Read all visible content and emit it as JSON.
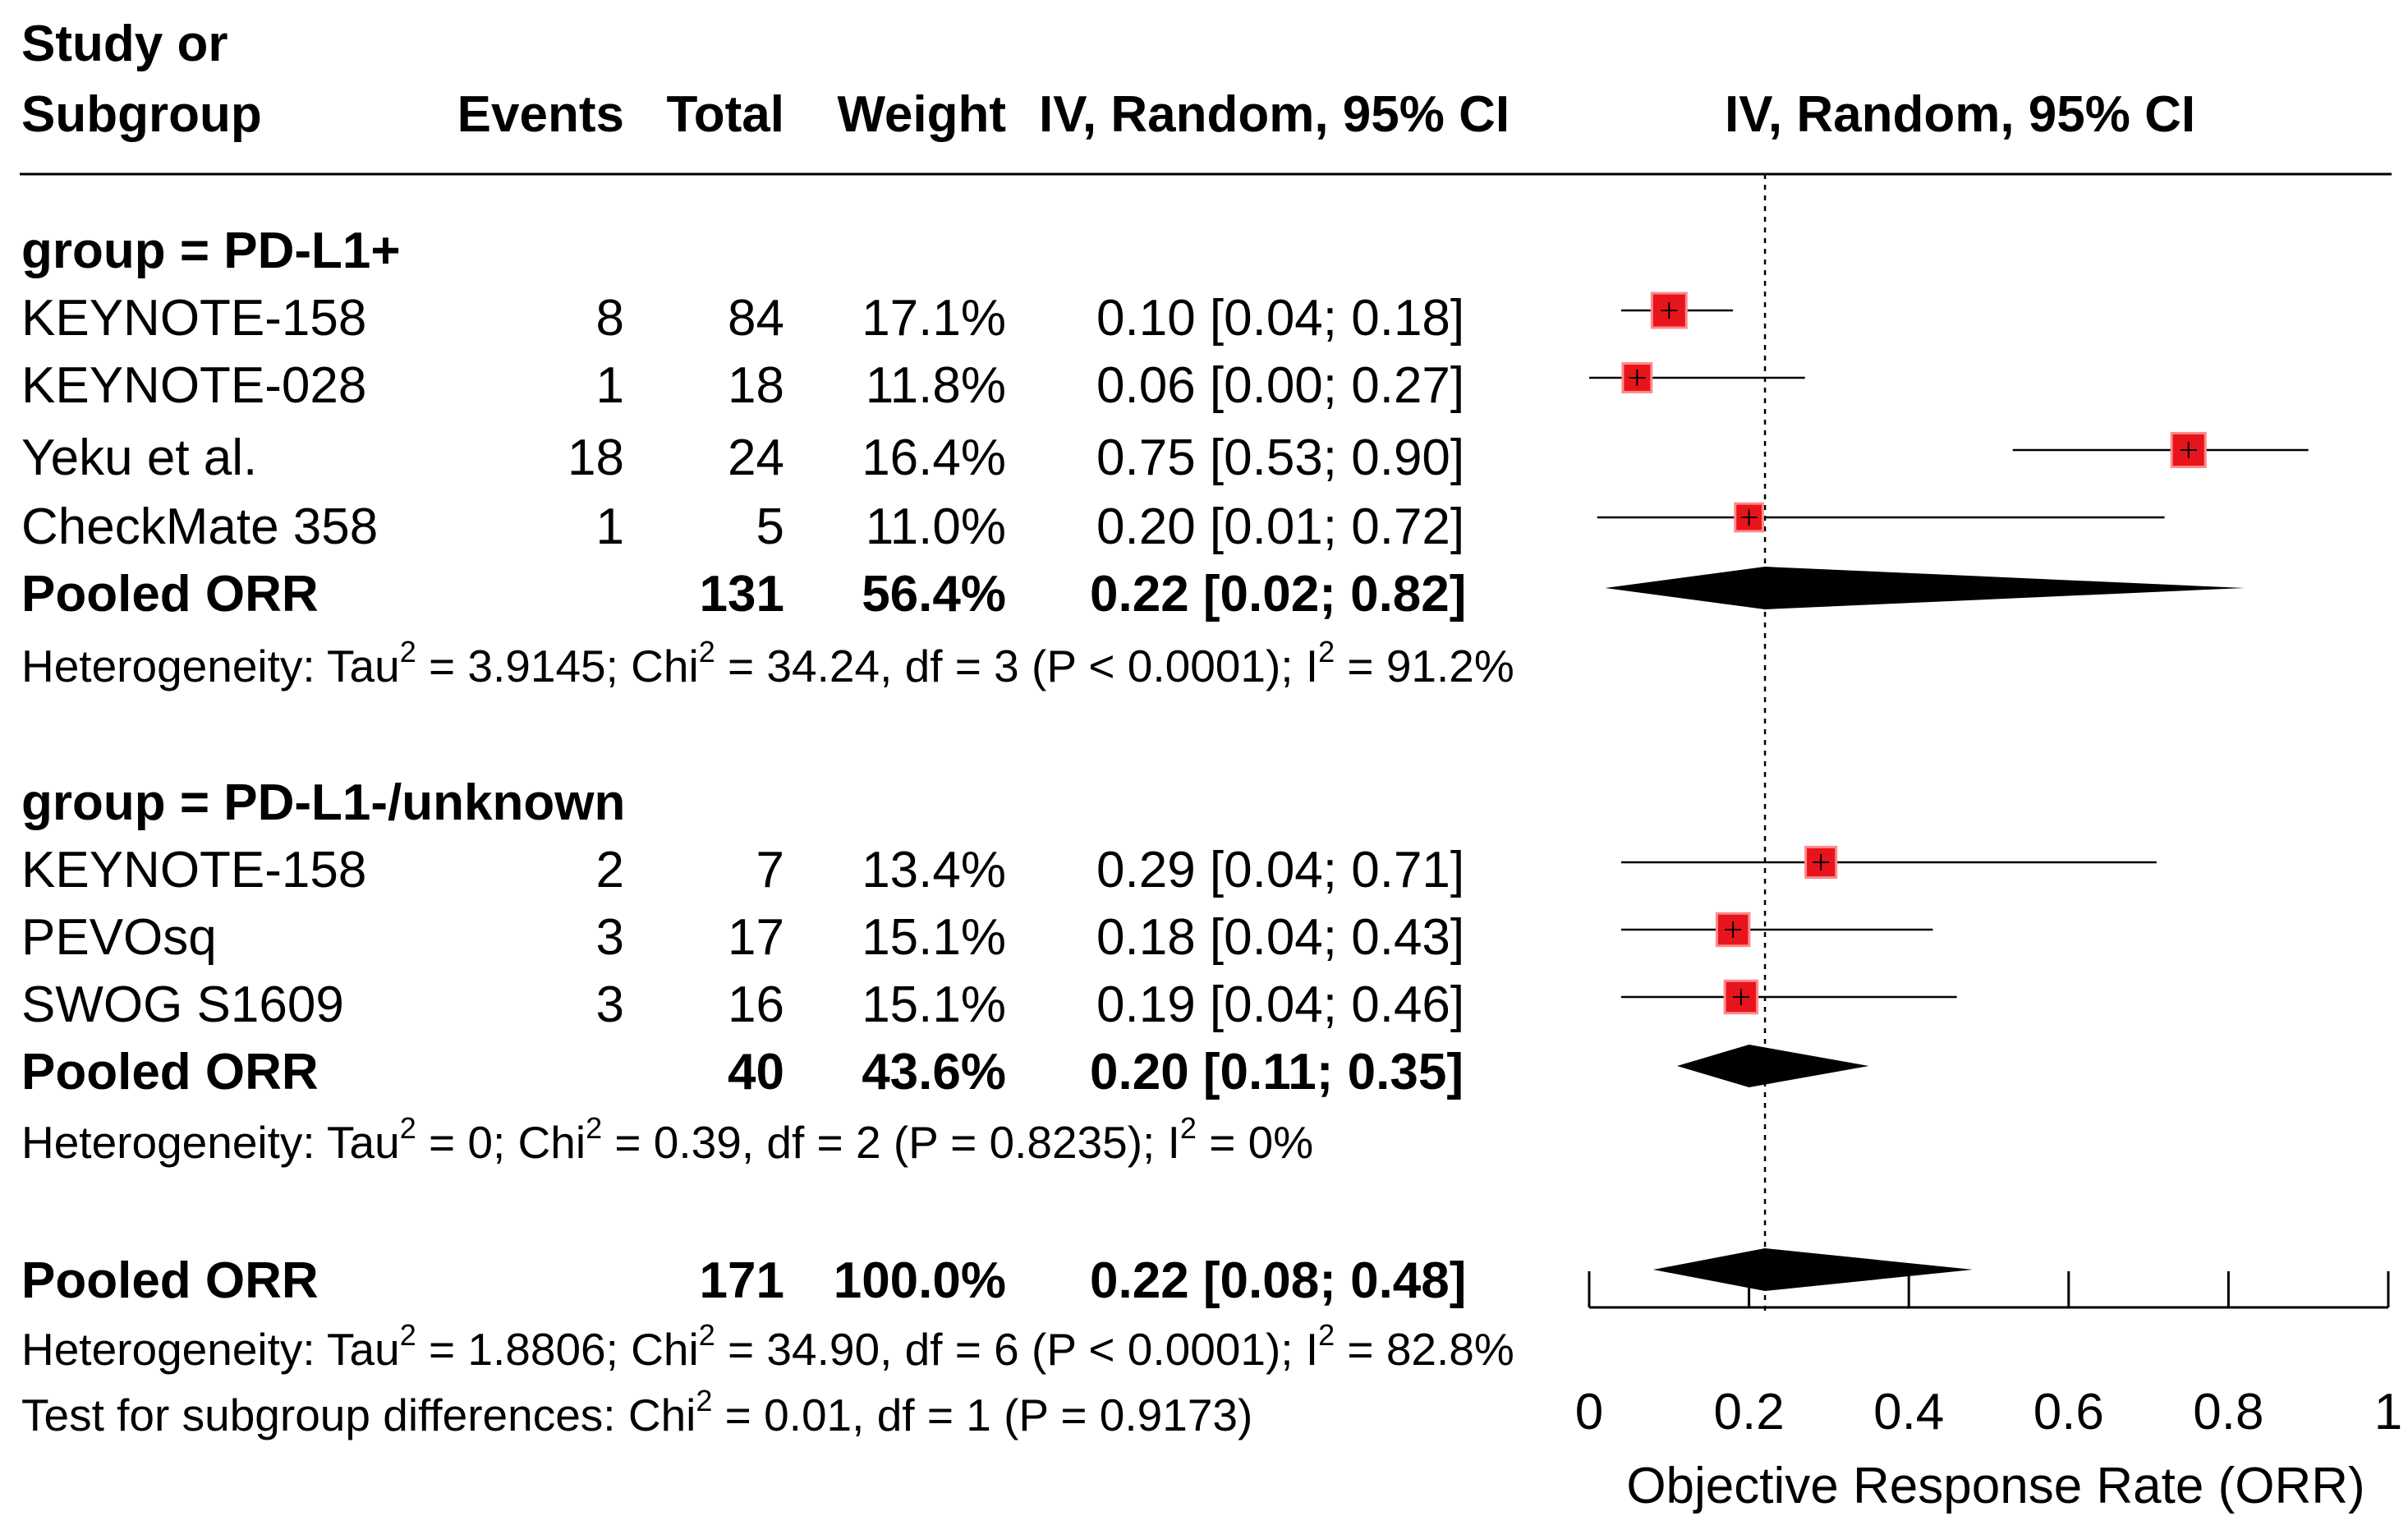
{
  "header": {
    "study_line1": "Study or",
    "study_line2": "Subgroup",
    "events": "Events",
    "total": "Total",
    "weight": "Weight",
    "ci_text": "IV, Random, 95% CI",
    "ci_plot": "IV, Random, 95% CI"
  },
  "chart_data": {
    "type": "forest",
    "xlabel": "Objective Response Rate (ORR)",
    "xlim": [
      0,
      1
    ],
    "ticks": [
      0,
      0.2,
      0.4,
      0.6,
      0.8,
      1
    ],
    "tick_labels": [
      "0",
      "0.2",
      "0.4",
      "0.6",
      "0.8",
      "1"
    ],
    "reference_line": 0.22,
    "groups": [
      {
        "title": "group = PD-L1+",
        "studies": [
          {
            "name": "KEYNOTE-158",
            "events": "8",
            "total": "84",
            "weight": "17.1%",
            "ci_text": "0.10 [0.04; 0.18]",
            "est": 0.1,
            "lo": 0.04,
            "hi": 0.18,
            "w": 17.1
          },
          {
            "name": "KEYNOTE-028",
            "events": "1",
            "total": "18",
            "weight": "11.8%",
            "ci_text": "0.06 [0.00; 0.27]",
            "est": 0.06,
            "lo": 0.0,
            "hi": 0.27,
            "w": 11.8
          },
          {
            "name": "Yeku et al.",
            "events": "18",
            "total": "24",
            "weight": "16.4%",
            "ci_text": "0.75 [0.53; 0.90]",
            "est": 0.75,
            "lo": 0.53,
            "hi": 0.9,
            "w": 16.4
          },
          {
            "name": "CheckMate 358",
            "events": "1",
            "total": "5",
            "weight": "11.0%",
            "ci_text": "0.20 [0.01; 0.72]",
            "est": 0.2,
            "lo": 0.01,
            "hi": 0.72,
            "w": 11.0
          }
        ],
        "pooled": {
          "label": "Pooled ORR",
          "total": "131",
          "weight": "56.4%",
          "ci_text": "0.22 [0.02; 0.82]",
          "est": 0.22,
          "lo": 0.02,
          "hi": 0.82
        },
        "heterogeneity": {
          "a": "Heterogeneity: Tau",
          "b": " = 3.9145; Chi",
          "c": " = 34.24, df = 3 (P < 0.0001); I",
          "d": " = 91.2%",
          "sup": "2"
        }
      },
      {
        "title": "group = PD-L1-/unknown",
        "studies": [
          {
            "name": "KEYNOTE-158",
            "events": "2",
            "total": "7",
            "weight": "13.4%",
            "ci_text": "0.29 [0.04; 0.71]",
            "est": 0.29,
            "lo": 0.04,
            "hi": 0.71,
            "w": 13.4
          },
          {
            "name": "PEVOsq",
            "events": "3",
            "total": "17",
            "weight": "15.1%",
            "ci_text": "0.18 [0.04; 0.43]",
            "est": 0.18,
            "lo": 0.04,
            "hi": 0.43,
            "w": 15.1
          },
          {
            "name": "SWOG S1609",
            "events": "3",
            "total": "16",
            "weight": "15.1%",
            "ci_text": "0.19 [0.04; 0.46]",
            "est": 0.19,
            "lo": 0.04,
            "hi": 0.46,
            "w": 15.1
          }
        ],
        "pooled": {
          "label": "Pooled ORR",
          "total": "40",
          "weight": "43.6%",
          "ci_text": "0.20 [0.11; 0.35]",
          "est": 0.2,
          "lo": 0.11,
          "hi": 0.35
        },
        "heterogeneity": {
          "a": "Heterogeneity: Tau",
          "b": " = 0; Chi",
          "c": " = 0.39, df = 2 (P = 0.8235); I",
          "d": " = 0%",
          "sup": "2"
        }
      }
    ],
    "overall": {
      "label": "Pooled ORR",
      "total": "171",
      "weight": "100.0%",
      "ci_text": "0.22 [0.08; 0.48]",
      "est": 0.22,
      "lo": 0.08,
      "hi": 0.48,
      "heterogeneity": {
        "a": "Heterogeneity: Tau",
        "b": " = 1.8806; Chi",
        "c": " = 34.90, df = 6 (P < 0.0001); I",
        "d": " = 82.8%",
        "sup": "2"
      },
      "subgroup_test": {
        "a": "Test for subgroup differences: Chi",
        "b": " = 0.01, df = 1 (P = 0.9173)",
        "sup": "2"
      }
    },
    "colors": {
      "box": "#e8141c",
      "box_edge": "#ff8a8a",
      "diamond": "#000000",
      "line": "#000000"
    }
  }
}
